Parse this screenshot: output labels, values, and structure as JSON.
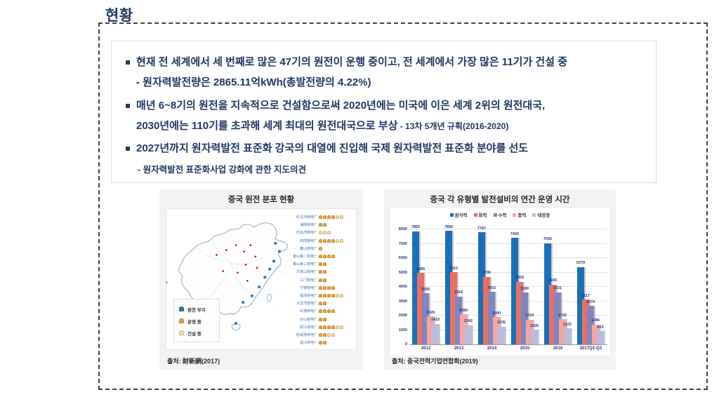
{
  "page_title": "현황",
  "colors": {
    "title_navy": "#203864",
    "bullet_text": "#1f3864",
    "nuclear_blue": "#1a70b8",
    "thermal_red": "#e97065",
    "hydro_purple": "#8086be",
    "wind_pink": "#f4a6a3",
    "solar_periwinkle": "#b9bcdf",
    "marker_site_blue": "#2e75b6",
    "marker_operating_orange": "#e6a23c",
    "marker_construction_yellow": "#f3dda2",
    "value_label": "#2d2e83"
  },
  "bullets": {
    "b1": "현재 전 세계에서 세 번째로 많은 47기의 원전이 운행 중이고, 전 세계에서 가장 많은 11기가 건설 중",
    "b1_sub": "- 원자력발전량은 2865.11억kWh(총발전량의 4.22%)",
    "b2_line1": "매년 6~8기의 원전을 지속적으로 건설함으로써 2020년에는 미국에 이은 세계 2위의 원전대국,",
    "b2_line2": "2030년에는 110기를 초과해 세계 최대의 원전대국으로 부상",
    "b2_note": " - 13차 5개년 규획(2016-2020)",
    "b3": "2027년까지 원자력발전 표준화 강국의 대열에 진입해 국제 원자력발전 표준화 분야를 선도",
    "b3_sub": "- 원자력발전 표준화사업 강화에 관한 지도의견"
  },
  "map_panel": {
    "title": "중국 원전 분포 현황",
    "source": "출처: 財新網(2017)",
    "legend": [
      {
        "key": "site",
        "label": "원전 부지"
      },
      {
        "key": "operating",
        "label": "운영 중"
      },
      {
        "key": "construction",
        "label": "건설 중"
      }
    ],
    "plants": [
      {
        "name": "红沿河核电厂",
        "operating": 4,
        "construction": 2
      },
      {
        "name": "海阳核电厂",
        "operating": 2,
        "construction": 0
      },
      {
        "name": "石岛湾核电厂",
        "operating": 0,
        "construction": 3
      },
      {
        "name": "田湾核电厂",
        "operating": 4,
        "construction": 2
      },
      {
        "name": "秦山核电厂",
        "operating": 1,
        "construction": 0
      },
      {
        "name": "秦山第二核电厂",
        "operating": 4,
        "construction": 0
      },
      {
        "name": "秦山第三核电厂",
        "operating": 2,
        "construction": 0
      },
      {
        "name": "方家山核电厂",
        "operating": 2,
        "construction": 0
      },
      {
        "name": "三门核电厂",
        "operating": 2,
        "construction": 0
      },
      {
        "name": "宁德核电厂",
        "operating": 4,
        "construction": 0
      },
      {
        "name": "福清核电厂",
        "operating": 4,
        "construction": 2
      },
      {
        "name": "大亚湾核电厂",
        "operating": 2,
        "construction": 0
      },
      {
        "name": "岭澳核电厂",
        "operating": 4,
        "construction": 0
      },
      {
        "name": "台山核电厂",
        "operating": 2,
        "construction": 0
      },
      {
        "name": "阳江核电厂",
        "operating": 4,
        "construction": 2
      },
      {
        "name": "防城港核电厂",
        "operating": 2,
        "construction": 2
      },
      {
        "name": "昌江核电厂",
        "operating": 2,
        "construction": 0
      }
    ]
  },
  "chart_data": {
    "type": "bar",
    "title": "중국 각 유형별 발전설비의 연간 운영 시간",
    "source": "출처: 중국전력기업연합회(2019)",
    "categories": [
      "2012",
      "2013",
      "2014",
      "2015",
      "2016",
      "2017Q1-Q3"
    ],
    "series": [
      {
        "name": "원자력",
        "color": "#1a70b8",
        "values": [
          7855,
          7893,
          7787,
          7403,
          7042,
          5379
        ]
      },
      {
        "name": "화력",
        "color": "#e97065",
        "values": [
          4965,
          5012,
          4706,
          4364,
          4165,
          3117
        ]
      },
      {
        "name": "수력",
        "color": "#8086be",
        "values": [
          3555,
          3318,
          3653,
          3590,
          3621,
          2674
        ]
      },
      {
        "name": "풍력",
        "color": "#f4a6a3",
        "values": [
          1929,
          2080,
          1900,
          1724,
          1742,
          1386
        ]
      },
      {
        "name": "태양광",
        "color": "#b9bcdf",
        "values": [
          1423,
          1342,
          1235,
          1025,
          1122,
          923
        ]
      }
    ],
    "ylim": [
      0,
      8000
    ],
    "ytick_step": 1000,
    "grid": true,
    "legend_position": "top"
  }
}
